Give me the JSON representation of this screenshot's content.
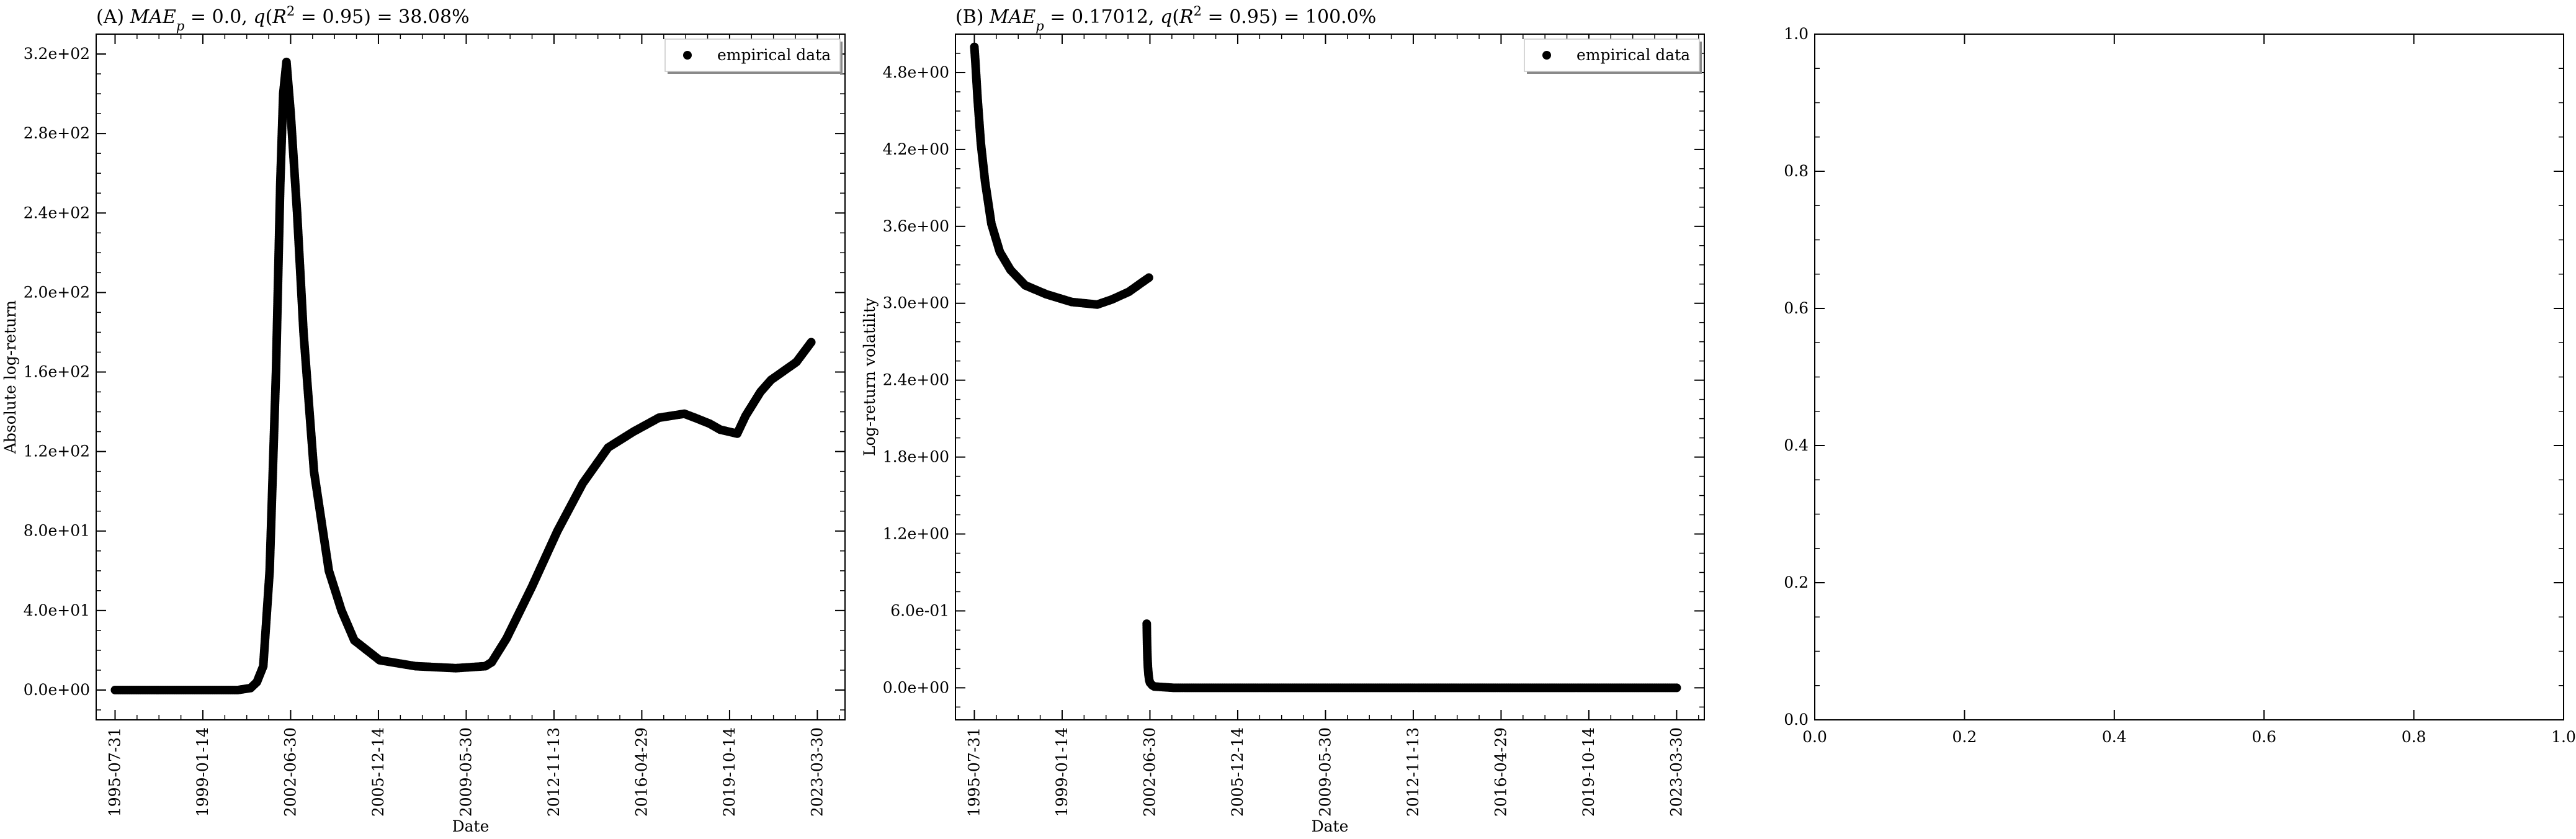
{
  "figure": {
    "background": "#ffffff",
    "marker_color": "#000000"
  },
  "chart_data": [
    {
      "type": "scatter",
      "title": "(A) MAE_p = 0.0, q(R^2 = 0.95) = 38.08%",
      "title_parts": [
        {
          "text": "(A) ",
          "italic": false
        },
        {
          "text": "MAE",
          "italic": true
        },
        {
          "text": "p",
          "italic": true,
          "sub": true
        },
        {
          "text": " = 0.0, ",
          "italic": false
        },
        {
          "text": "q",
          "italic": true
        },
        {
          "text": "(",
          "italic": false
        },
        {
          "text": "R",
          "italic": true
        },
        {
          "text": "2",
          "italic": false,
          "sup": true
        },
        {
          "text": " = 0.95) = 38.08%",
          "italic": false
        }
      ],
      "xlabel": "Date",
      "ylabel": "Absolute log-return",
      "x_scale": "time",
      "xlim": [
        "1994-11-01",
        "2024-05-01"
      ],
      "ylim": [
        -15,
        330
      ],
      "x_ticks": [
        "1995-07-31",
        "1999-01-14",
        "2002-06-30",
        "2005-12-14",
        "2009-05-30",
        "2012-11-13",
        "2016-04-29",
        "2019-10-14",
        "2023-03-30"
      ],
      "y_ticks": [
        0,
        40,
        80,
        120,
        160,
        200,
        240,
        280,
        320
      ],
      "y_tick_labels": [
        "0.0e+00",
        "4.0e+01",
        "8.0e+01",
        "1.2e+02",
        "1.6e+02",
        "2.0e+02",
        "2.4e+02",
        "2.8e+02",
        "3.2e+02"
      ],
      "legend": {
        "placement": "top-right",
        "entries": [
          "empirical data"
        ]
      },
      "grid": false,
      "series": [
        {
          "name": "empirical data",
          "x": [
            "1995-07-31",
            "1997-01-01",
            "1998-06-01",
            "2000-06-01",
            "2000-12-01",
            "2001-03-01",
            "2001-06-01",
            "2001-09-01",
            "2001-12-01",
            "2002-02-01",
            "2002-03-15",
            "2002-05-01",
            "2002-07-01",
            "2002-10-01",
            "2003-01-01",
            "2003-06-01",
            "2004-01-01",
            "2004-07-01",
            "2005-01-01",
            "2006-01-01",
            "2007-06-01",
            "2009-01-01",
            "2010-03-01",
            "2010-06-01",
            "2011-01-01",
            "2012-01-01",
            "2013-01-01",
            "2014-01-01",
            "2015-01-01",
            "2016-01-01",
            "2017-01-01",
            "2018-01-01",
            "2018-06-01",
            "2019-01-01",
            "2019-06-01",
            "2020-02-01",
            "2020-06-01",
            "2021-01-01",
            "2021-06-01",
            "2022-06-01",
            "2023-01-01"
          ],
          "y": [
            0,
            0,
            0,
            0,
            1,
            4,
            12,
            60,
            160,
            255,
            300,
            316,
            290,
            240,
            180,
            110,
            60,
            40,
            25,
            15,
            12,
            11,
            12,
            14,
            26,
            52,
            80,
            104,
            122,
            130,
            137,
            139,
            137,
            134,
            131,
            129,
            138,
            150,
            156,
            165,
            175
          ]
        }
      ]
    },
    {
      "type": "scatter",
      "title": "(B) MAE_p = 0.17012, q(R^2 = 0.95) = 100.0%",
      "title_parts": [
        {
          "text": "(B) ",
          "italic": false
        },
        {
          "text": "MAE",
          "italic": true
        },
        {
          "text": "p",
          "italic": true,
          "sub": true
        },
        {
          "text": " = 0.17012, ",
          "italic": false
        },
        {
          "text": "q",
          "italic": true
        },
        {
          "text": "(",
          "italic": false
        },
        {
          "text": "R",
          "italic": true
        },
        {
          "text": "2",
          "italic": false,
          "sup": true
        },
        {
          "text": " = 0.95) = 100.0%",
          "italic": false
        }
      ],
      "xlabel": "Date",
      "ylabel": "Log-return volatility",
      "x_scale": "time",
      "xlim": [
        "1994-11-01",
        "2024-05-01"
      ],
      "ylim": [
        -0.25,
        5.1
      ],
      "x_ticks": [
        "1995-07-31",
        "1999-01-14",
        "2002-06-30",
        "2005-12-14",
        "2009-05-30",
        "2012-11-13",
        "2016-04-29",
        "2019-10-14",
        "2023-03-30"
      ],
      "y_ticks": [
        0,
        0.6,
        1.2,
        1.8,
        2.4,
        3.0,
        3.6,
        4.2,
        4.8
      ],
      "y_tick_labels": [
        "0.0e+00",
        "6.0e-01",
        "1.2e+00",
        "1.8e+00",
        "2.4e+00",
        "3.0e+00",
        "3.6e+00",
        "4.2e+00",
        "4.8e+00"
      ],
      "legend": {
        "placement": "top-right",
        "entries": [
          "empirical data"
        ]
      },
      "grid": false,
      "series": [
        {
          "name": "empirical data",
          "segments": [
            {
              "x": [
                "1995-07-31",
                "1995-08-15",
                "1995-09-15",
                "1995-11-01",
                "1996-01-01",
                "1996-04-01",
                "1996-08-01",
                "1997-01-01",
                "1997-08-01",
                "1998-06-01",
                "1999-06-01",
                "2000-06-01",
                "2001-01-01",
                "2001-09-01",
                "2002-03-01",
                "2002-06-15"
              ],
              "y": [
                5.0,
                4.88,
                4.6,
                4.25,
                3.95,
                3.62,
                3.4,
                3.26,
                3.14,
                3.07,
                3.01,
                2.99,
                3.03,
                3.09,
                3.16,
                3.2
              ]
            },
            {
              "x": [
                "2002-05-15",
                "2002-05-20",
                "2002-05-25",
                "2002-06-01",
                "2002-06-10",
                "2002-06-20",
                "2002-07-01",
                "2002-08-01",
                "2002-09-01",
                "2003-06-01",
                "2006-01-01",
                "2010-01-01",
                "2014-01-01",
                "2018-01-01",
                "2021-01-01",
                "2023-03-30"
              ],
              "y": [
                0.5,
                0.34,
                0.24,
                0.16,
                0.1,
                0.06,
                0.04,
                0.02,
                0.01,
                0,
                0,
                0,
                0,
                0,
                0,
                0
              ]
            }
          ]
        }
      ]
    },
    {
      "type": "scatter",
      "title": "",
      "xlabel": "",
      "ylabel": "",
      "xlim": [
        0,
        1
      ],
      "ylim": [
        0,
        1
      ],
      "x_ticks": [
        0,
        0.2,
        0.4,
        0.6,
        0.8,
        1.0
      ],
      "x_tick_labels": [
        "0.0",
        "0.2",
        "0.4",
        "0.6",
        "0.8",
        "1.0"
      ],
      "y_ticks": [
        0,
        0.2,
        0.4,
        0.6,
        0.8,
        1.0
      ],
      "y_tick_labels": [
        "0.0",
        "0.2",
        "0.4",
        "0.6",
        "0.8",
        "1.0"
      ],
      "grid": false,
      "series": []
    }
  ]
}
